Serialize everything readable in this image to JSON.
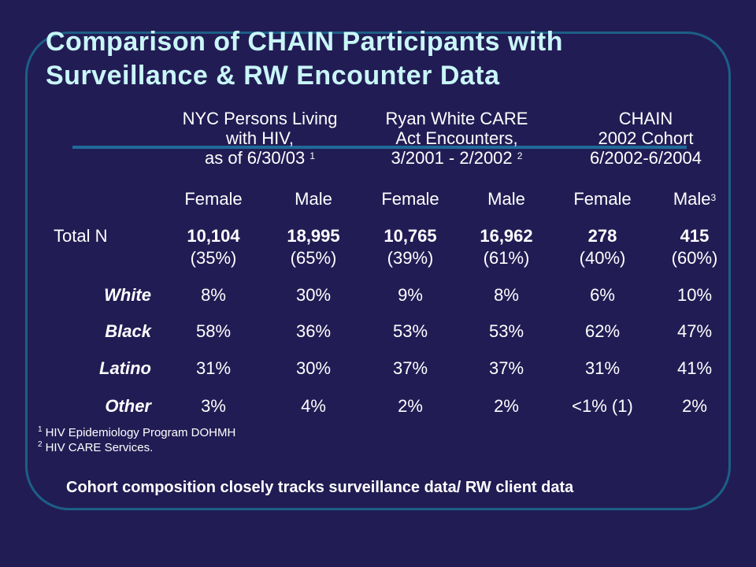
{
  "title": {
    "line1": "Comparison of  CHAIN Participants with",
    "line2": "Surveillance & RW Encounter Data"
  },
  "column_groups": [
    {
      "lines": [
        "NYC Persons Living",
        "with HIV,",
        "as of 6/30/03"
      ],
      "footnote": "1"
    },
    {
      "lines": [
        "Ryan White CARE",
        "Act Encounters,",
        "3/2001 - 2/2002"
      ],
      "footnote": "2"
    },
    {
      "lines": [
        "CHAIN",
        "2002 Cohort",
        "6/2002-6/2004"
      ],
      "footnote": ""
    }
  ],
  "sex_headers": [
    "Female",
    "Male",
    "Female",
    "Male",
    "Female",
    "Male"
  ],
  "sex_header_last_footnote": "3",
  "total": {
    "label": "Total  N",
    "counts": [
      "10,104",
      "18,995",
      "10,765",
      "16,962",
      "278",
      "415"
    ],
    "percents": [
      "(35%)",
      "(65%)",
      "(39%)",
      "(61%)",
      "(40%)",
      "(60%)"
    ]
  },
  "rows": [
    {
      "label": "White",
      "values": [
        "8%",
        "30%",
        "9%",
        "8%",
        "6%",
        "10%"
      ]
    },
    {
      "label": "Black",
      "values": [
        "58%",
        "36%",
        "53%",
        "53%",
        "62%",
        "47%"
      ]
    },
    {
      "label": "Latino",
      "values": [
        "31%",
        "30%",
        "37%",
        "37%",
        "31%",
        "41%"
      ]
    },
    {
      "label": "Other",
      "values": [
        "3%",
        "4%",
        "2%",
        "2%",
        "<1% (1)",
        "2%"
      ]
    }
  ],
  "footnotes": [
    {
      "mark": "1",
      "text": "HIV Epidemiology Program DOHMH"
    },
    {
      "mark": "2",
      "text": "HIV CARE Services."
    }
  ],
  "bottom_note": "Cohort composition closely tracks  surveillance data/ RW client data",
  "colors": {
    "background": "#221c54",
    "title": "#c9f6f8",
    "frame": "#1c5f86",
    "text": "#ffffff"
  }
}
